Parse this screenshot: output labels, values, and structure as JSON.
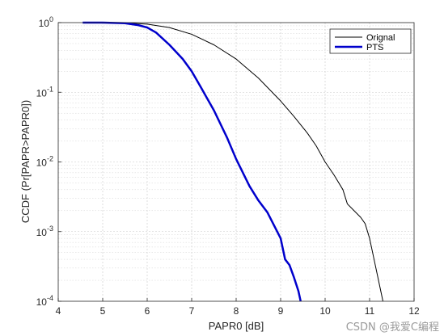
{
  "chart_data": {
    "type": "line",
    "xlabel": "PAPR0 [dB]",
    "ylabel": "CCDF (Pr[PAPR>PAPR0])",
    "xlim": [
      4,
      12
    ],
    "ylim": [
      0.0001,
      1
    ],
    "yscale": "log",
    "x_ticks": [
      "4",
      "5",
      "6",
      "7",
      "8",
      "9",
      "10",
      "11",
      "12"
    ],
    "y_ticks": [
      {
        "base": "10",
        "exp": "0",
        "value": 1
      },
      {
        "base": "10",
        "exp": "-1",
        "value": 0.1
      },
      {
        "base": "10",
        "exp": "-2",
        "value": 0.01
      },
      {
        "base": "10",
        "exp": "-3",
        "value": 0.001
      },
      {
        "base": "10",
        "exp": "-4",
        "value": 0.0001
      }
    ],
    "grid": true,
    "minor_grid": true,
    "legend_position": "top-right",
    "series": [
      {
        "name": "Orignal",
        "color": "#000000",
        "width": 1,
        "x": [
          4.6,
          5.0,
          5.5,
          6.0,
          6.5,
          7.0,
          7.5,
          8.0,
          8.5,
          9.0,
          9.3,
          9.6,
          9.8,
          10.0,
          10.2,
          10.4,
          10.5,
          10.8,
          10.9,
          11.0,
          11.1,
          11.2,
          11.3
        ],
        "y": [
          1.0,
          1.0,
          0.99,
          0.95,
          0.85,
          0.68,
          0.48,
          0.3,
          0.16,
          0.075,
          0.045,
          0.026,
          0.017,
          0.01,
          0.0065,
          0.004,
          0.0025,
          0.0016,
          0.0013,
          0.0008,
          0.0004,
          0.0002,
          0.0001
        ]
      },
      {
        "name": "PTS",
        "color": "#0000cc",
        "width": 2.5,
        "x": [
          4.55,
          5.0,
          5.5,
          5.8,
          6.0,
          6.2,
          6.5,
          6.8,
          7.0,
          7.2,
          7.5,
          7.8,
          8.0,
          8.3,
          8.5,
          8.7,
          9.0,
          9.1,
          9.2,
          9.3,
          9.4,
          9.45
        ],
        "y": [
          1.0,
          1.0,
          0.98,
          0.92,
          0.85,
          0.72,
          0.48,
          0.3,
          0.2,
          0.12,
          0.055,
          0.022,
          0.011,
          0.0045,
          0.0028,
          0.0019,
          0.0008,
          0.0004,
          0.00033,
          0.00022,
          0.00014,
          0.0001
        ]
      }
    ]
  },
  "watermark": "CSDN @我爱C编程"
}
